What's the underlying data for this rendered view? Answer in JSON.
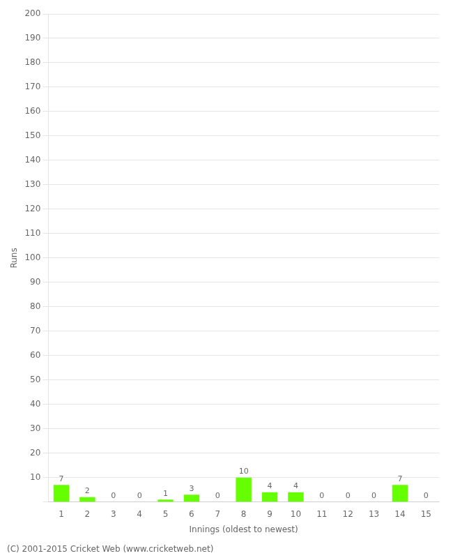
{
  "chart_data": {
    "type": "bar",
    "xlabel": "Innings (oldest to newest)",
    "ylabel": "Runs",
    "footer": "(C) 2001-2015 Cricket Web (www.cricketweb.net)",
    "categories": [
      1,
      2,
      3,
      4,
      5,
      6,
      7,
      8,
      9,
      10,
      11,
      12,
      13,
      14,
      15
    ],
    "values": [
      7,
      2,
      0,
      0,
      1,
      3,
      0,
      10,
      4,
      4,
      0,
      0,
      0,
      7,
      0
    ],
    "color": "#66ff00",
    "ylim": [
      0,
      200
    ],
    "yticks": [
      {
        "value": 0,
        "label": ""
      },
      10,
      20,
      30,
      40,
      50,
      60,
      70,
      80,
      90,
      100,
      110,
      120,
      130,
      140,
      150,
      160,
      170,
      180,
      190,
      200
    ],
    "grid": true,
    "data_labels": true
  }
}
